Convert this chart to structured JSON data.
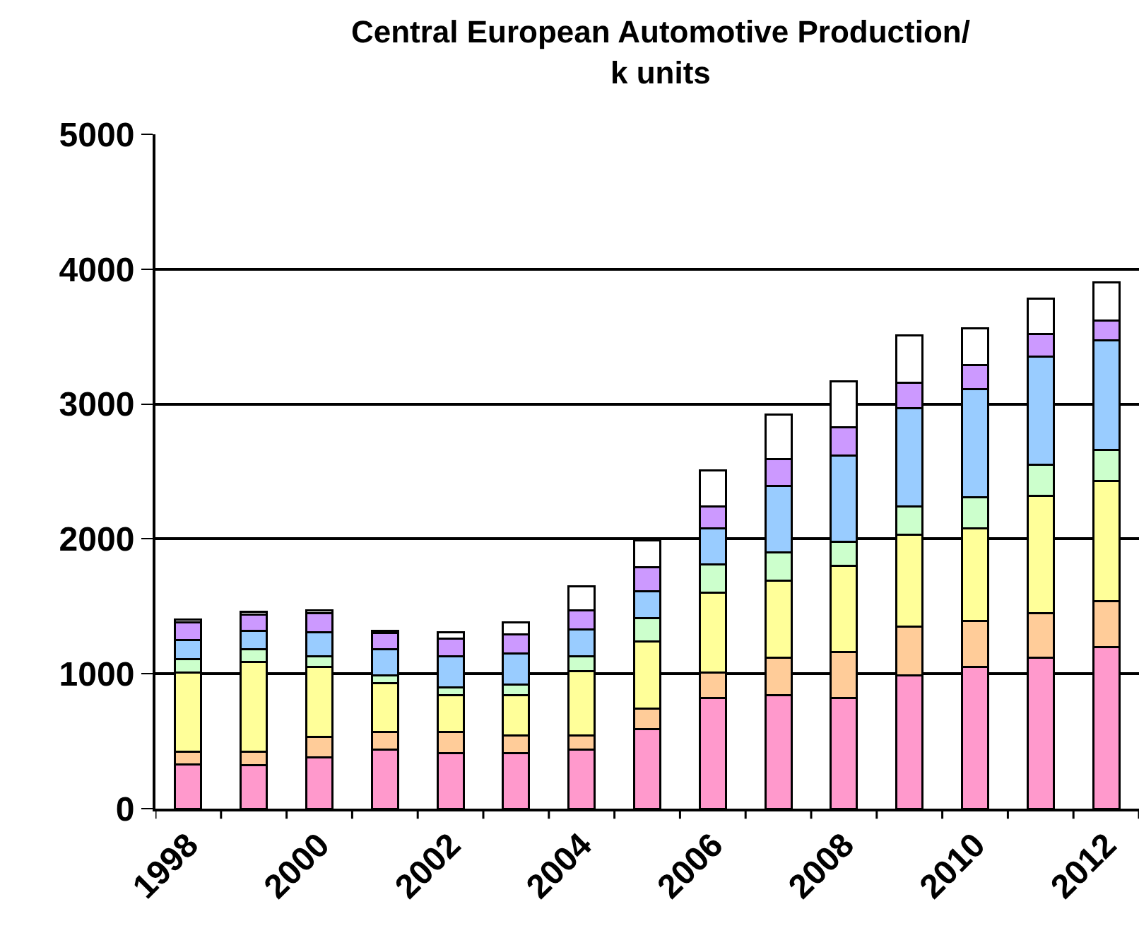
{
  "chart_data": {
    "type": "bar",
    "title": "Central European Automotive Production/\nk units",
    "categories": [
      "1998",
      null,
      "2000",
      null,
      "2002",
      null,
      "2004",
      null,
      "2006",
      null,
      "2008",
      null,
      "2010",
      null,
      "2012"
    ],
    "stacked": true,
    "series": [
      {
        "color": "#ff99cc",
        "values": [
          330,
          320,
          380,
          440,
          410,
          410,
          440,
          590,
          820,
          840,
          820,
          990,
          1050,
          1120,
          1200
        ]
      },
      {
        "color": "#ffcc99",
        "values": [
          90,
          100,
          150,
          130,
          160,
          130,
          100,
          150,
          190,
          280,
          340,
          360,
          340,
          330,
          340
        ]
      },
      {
        "color": "#ffff99",
        "values": [
          590,
          670,
          520,
          360,
          270,
          300,
          480,
          500,
          590,
          570,
          640,
          680,
          690,
          870,
          890
        ]
      },
      {
        "color": "#ccffcc",
        "values": [
          100,
          90,
          80,
          60,
          60,
          80,
          110,
          170,
          210,
          210,
          180,
          210,
          230,
          230,
          230
        ]
      },
      {
        "color": "#99ccff",
        "values": [
          140,
          140,
          180,
          190,
          230,
          230,
          200,
          200,
          270,
          490,
          640,
          730,
          800,
          800,
          810
        ]
      },
      {
        "color": "#cc99ff",
        "values": [
          130,
          120,
          140,
          120,
          130,
          140,
          140,
          180,
          160,
          200,
          210,
          190,
          180,
          170,
          150
        ]
      },
      {
        "color": "#ffffff",
        "values": [
          20,
          20,
          20,
          20,
          50,
          90,
          180,
          200,
          270,
          330,
          340,
          350,
          270,
          260,
          280
        ]
      }
    ],
    "ylim": [
      0,
      5000
    ],
    "yticks": [
      0,
      1000,
      2000,
      3000,
      4000,
      5000
    ],
    "grid": "y"
  }
}
